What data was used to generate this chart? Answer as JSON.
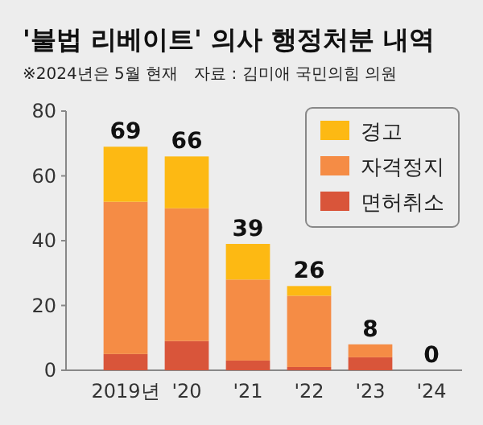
{
  "chart_data": {
    "type": "bar",
    "title": "'불법 리베이트' 의사 행정처분 내역",
    "subtitle": "※2024년은 5월 현재",
    "annotations": [
      "자료 : 김미애 국민의힘 의원"
    ],
    "categories": [
      "2019년",
      "'20",
      "'21",
      "'22",
      "'23",
      "'24"
    ],
    "stacked": true,
    "series": [
      {
        "name": "면허취소",
        "color": "#d9553a",
        "values": [
          5,
          9,
          3,
          1,
          4,
          0
        ]
      },
      {
        "name": "자격정지",
        "color": "#f58c45",
        "values": [
          47,
          41,
          25,
          22,
          4,
          0
        ]
      },
      {
        "name": "경고",
        "color": "#fdb913",
        "values": [
          17,
          16,
          11,
          3,
          0,
          0
        ]
      }
    ],
    "totals": [
      "69",
      "66",
      "39",
      "26",
      "8",
      "0"
    ],
    "ylim": [
      0,
      80
    ],
    "yticks": [
      0,
      20,
      40,
      60,
      80
    ],
    "grid": false,
    "legend": "top right"
  }
}
